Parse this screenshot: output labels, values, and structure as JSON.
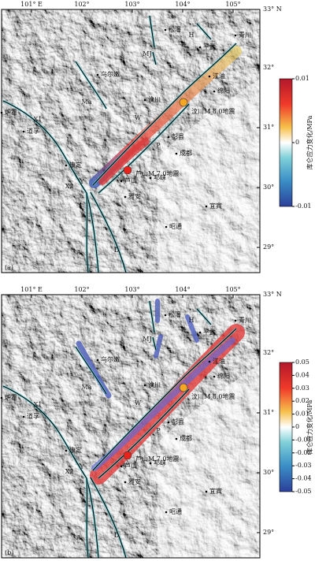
{
  "lon_ticks": [
    {
      "value": 101,
      "label": "101° E"
    },
    {
      "value": 102,
      "label": "102°"
    },
    {
      "value": 103,
      "label": "103°"
    },
    {
      "value": 104,
      "label": "104°"
    },
    {
      "value": 105,
      "label": "105°"
    }
  ],
  "lat_ticks": [
    {
      "value": 33,
      "label": "33° N"
    },
    {
      "value": 32,
      "label": "32°"
    },
    {
      "value": 31,
      "label": "31°"
    },
    {
      "value": 30,
      "label": "30°"
    },
    {
      "value": 29,
      "label": "29°"
    }
  ],
  "places": [
    "松潘",
    "平武",
    "青川",
    "江油",
    "绵阳",
    "汶川",
    "乌尔嫩",
    "成都",
    "彭县",
    "邛崃",
    "芦山",
    "雅安",
    "宜宾",
    "昭通",
    "康定",
    "道孚",
    "炉霍"
  ],
  "faults": [
    "H",
    "MJ",
    "Ma",
    "W",
    "P",
    "X1",
    "X2",
    "Y",
    "A",
    "D"
  ],
  "events": [
    {
      "prefix": "汶川M",
      "sub": "s",
      "suffix": "8.0地震"
    },
    {
      "prefix": "芦山M",
      "sub": "s",
      "suffix": "7.0地震"
    }
  ],
  "panels": [
    {
      "label": "(a)",
      "colorbar_title": "库仑应力变化/MPa",
      "colorbar_lim": [
        -0.01,
        0.01
      ],
      "colorbar_ticks": [
        0.01,
        0,
        -0.01
      ]
    },
    {
      "label": "(b)",
      "colorbar_title": "库仑应力变化/MPa",
      "colorbar_lim": [
        -0.05,
        0.05
      ],
      "colorbar_ticks": [
        0.05,
        0.04,
        0.03,
        0.02,
        0.01,
        0,
        -0.01,
        -0.02,
        -0.03,
        -0.04,
        -0.05
      ]
    }
  ]
}
